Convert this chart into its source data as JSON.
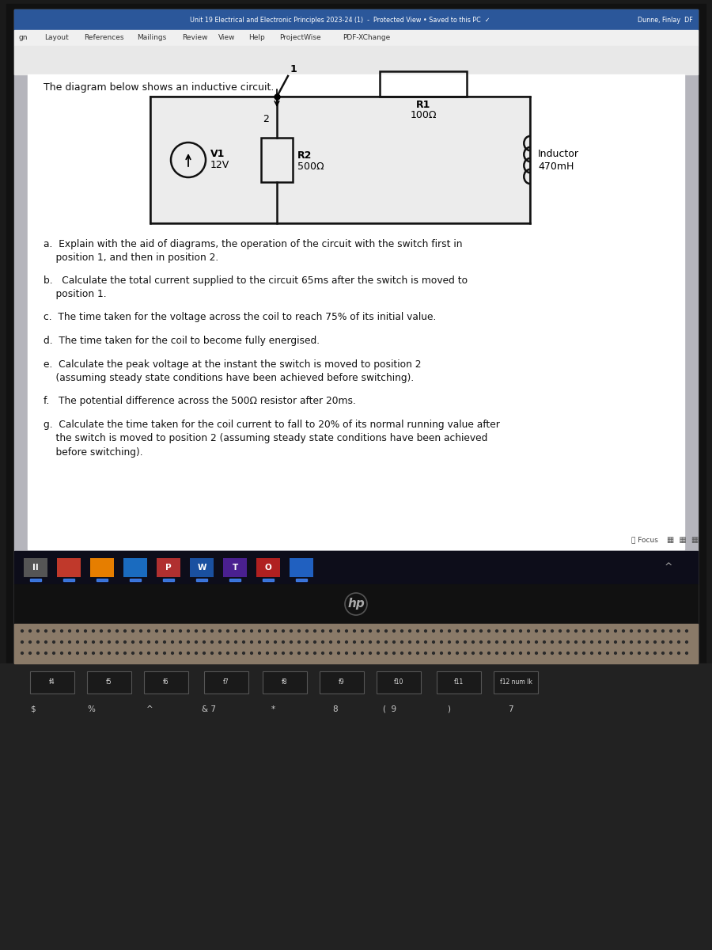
{
  "bg_outer": "#1a1a1a",
  "bg_screen": "#b5b5bc",
  "bg_title_bar": "#2b579a",
  "bg_menu": "#f0f0f0",
  "bg_doc": "#ffffff",
  "bg_taskbar": "#0d1117",
  "bg_speaker": "#8a7a68",
  "title_bar_text": "Unit 19 Electrical and Electronic Principles 2023-24 (1)  -  Protected View • Saved to this PC  ✓",
  "top_right_text": "Dunne, Finlay  DF",
  "menu_items": [
    [
      "gn",
      5
    ],
    [
      "Layout",
      38
    ],
    [
      "References",
      88
    ],
    [
      "Mailings",
      155
    ],
    [
      "Review",
      212
    ],
    [
      "View",
      258
    ],
    [
      "Help",
      296
    ],
    [
      "ProjectWise",
      335
    ],
    [
      "PDF-XChange",
      415
    ]
  ],
  "intro_text": "The diagram below shows an inductive circuit.",
  "questions": [
    "a.  Explain with the aid of diagrams, the operation of the circuit with the switch first in\n    position 1, and then in position 2.",
    "b.   Calculate the total current supplied to the circuit 65ms after the switch is moved to\n    position 1.",
    "c.  The time taken for the voltage across the coil to reach 75% of its initial value.",
    "d.  The time taken for the coil to become fully energised.",
    "e.  Calculate the peak voltage at the instant the switch is moved to position 2\n    (assuming steady state conditions have been achieved before switching).",
    "f.   The potential difference across the 500Ω resistor after 20ms.",
    "g.  Calculate the time taken for the coil current to fall to 20% of its normal running value after\n    the switch is moved to position 2 (assuming steady state conditions have been achieved\n    before switching)."
  ],
  "V1_text": [
    "V1",
    "12V"
  ],
  "R1_text": [
    "R1",
    "100Ω"
  ],
  "R2_text": [
    "R2",
    "500Ω"
  ],
  "L_text": [
    "Inductor",
    "470mH"
  ],
  "switch_label_1": "1",
  "switch_label_2": "2"
}
